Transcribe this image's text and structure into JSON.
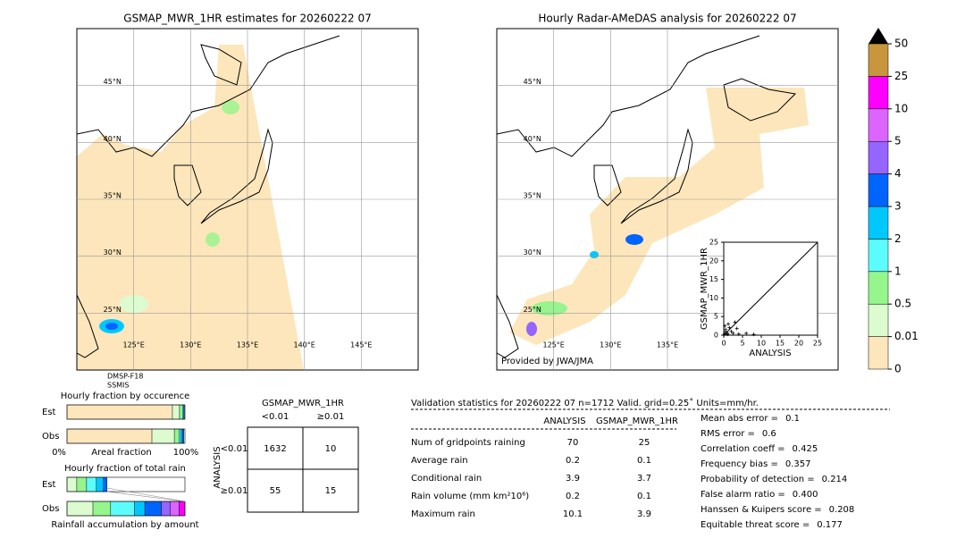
{
  "left_map": {
    "title": "GSMAP_MWR_1HR estimates for 20260222 07",
    "xlim": [
      120,
      150
    ],
    "ylim": [
      20,
      50
    ],
    "xticks": [
      {
        "value": 125,
        "label": "125°E"
      },
      {
        "value": 130,
        "label": "130°E"
      },
      {
        "value": 135,
        "label": "135°E"
      },
      {
        "value": 140,
        "label": "140°E"
      },
      {
        "value": 145,
        "label": "145°E"
      }
    ],
    "yticks": [
      {
        "value": 45,
        "label": "45°N"
      },
      {
        "value": 40,
        "label": "40°N"
      },
      {
        "value": 35,
        "label": "35°N"
      },
      {
        "value": 30,
        "label": "30°N"
      },
      {
        "value": 25,
        "label": "25°N"
      }
    ],
    "satellite": [
      "DMSP-F18",
      "SSMIS"
    ]
  },
  "right_map": {
    "title": "Hourly Radar-AMeDAS analysis for 20260222 07",
    "xlim": [
      120,
      150
    ],
    "ylim": [
      20,
      50
    ],
    "xticks": [
      {
        "value": 125,
        "label": "125°E"
      },
      {
        "value": 130,
        "label": "130°E"
      },
      {
        "value": 135,
        "label": "135°E"
      }
    ],
    "yticks": [
      {
        "value": 45,
        "label": "45°N"
      },
      {
        "value": 40,
        "label": "40°N"
      },
      {
        "value": 35,
        "label": "35°N"
      },
      {
        "value": 30,
        "label": "30°N"
      },
      {
        "value": 25,
        "label": "25°N"
      }
    ],
    "credit": "Provided by JWA/JMA"
  },
  "scatter": {
    "type": "scatter",
    "xlabel": "ANALYSIS",
    "ylabel": "GSMAP_MWR_1HR",
    "xlim": [
      0,
      25
    ],
    "ylim": [
      0,
      25
    ],
    "xticks": [
      0,
      5,
      10,
      15,
      20,
      25
    ],
    "yticks": [
      0,
      5,
      10,
      15,
      20,
      25
    ],
    "x": [
      0.2,
      0.5,
      1,
      1.5,
      2,
      3,
      0.3,
      1,
      2.5,
      4,
      6,
      8,
      0.5,
      1.2,
      3.5
    ],
    "y": [
      0.3,
      1,
      0.5,
      2,
      1,
      3.5,
      2.5,
      0.2,
      0.5,
      0.3,
      0.5,
      0.2,
      1.5,
      3,
      1.8
    ]
  },
  "colorbar": {
    "levels": [
      0,
      0.01,
      0.5,
      1,
      2,
      3,
      4,
      5,
      10,
      25,
      50
    ],
    "colors": [
      "#fde6bb",
      "#dcfcd0",
      "#96f58c",
      "#5cfcfc",
      "#00c8ff",
      "#0064ff",
      "#9664ff",
      "#dc64ff",
      "#ff00ff",
      "#c8963c"
    ]
  },
  "occurrence": {
    "title": "Hourly fraction by occurence",
    "axis_labels": [
      "0%",
      "Areal fraction",
      "100%"
    ],
    "rows": [
      {
        "label": "Est",
        "fractions": [
          0.894,
          0.06,
          0.025,
          0.008,
          0.008
        ]
      },
      {
        "label": "Obs",
        "fractions": [
          0.72,
          0.19,
          0.04,
          0.015,
          0.015,
          0.01
        ]
      }
    ]
  },
  "total_rain": {
    "title": "Hourly fraction of total rain",
    "xlabel": "Rainfall accumulation by amount",
    "rows": [
      {
        "label": "Est",
        "fractions": [
          0,
          0.083,
          0.083,
          0.083,
          0.06,
          0.03
        ]
      },
      {
        "label": "Obs",
        "fractions": [
          0,
          0.22,
          0.15,
          0.2,
          0.09,
          0.14,
          0.075,
          0.075,
          0.05
        ]
      }
    ]
  },
  "contingency": {
    "title": "GSMAP_MWR_1HR",
    "col_labels": [
      "<0.01",
      "≥0.01"
    ],
    "row_title": "ANALYSIS",
    "row_labels": [
      "<0.01",
      "≥0.01"
    ],
    "cells": [
      [
        1632,
        10
      ],
      [
        55,
        15
      ]
    ]
  },
  "validation": {
    "header": "Validation statistics for 20260222 07  n=1712 Valid. grid=0.25˚ Units=mm/hr.",
    "columns": [
      "ANALYSIS",
      "GSMAP_MWR_1HR"
    ],
    "rows": [
      {
        "label": "Num of gridpoints raining",
        "values": [
          "70",
          "25"
        ]
      },
      {
        "label": "Average rain",
        "values": [
          "0.2",
          "0.1"
        ]
      },
      {
        "label": "Conditional rain",
        "values": [
          "3.9",
          "3.7"
        ]
      },
      {
        "label": "Rain volume (mm km²10⁶)",
        "values": [
          "0.2",
          "0.1"
        ]
      },
      {
        "label": "Maximum rain",
        "values": [
          "10.1",
          "3.9"
        ]
      }
    ],
    "scores": [
      {
        "label": "Mean abs error =",
        "value": "0.1"
      },
      {
        "label": "RMS error =",
        "value": "0.6"
      },
      {
        "label": "Correlation coeff =",
        "value": "0.425"
      },
      {
        "label": "Frequency bias =",
        "value": "0.357"
      },
      {
        "label": "Probability of detection =",
        "value": "0.214"
      },
      {
        "label": "False alarm ratio =",
        "value": "0.400"
      },
      {
        "label": "Hanssen & Kuipers score =",
        "value": "0.208"
      },
      {
        "label": "Equitable threat score =",
        "value": "0.177"
      }
    ]
  }
}
